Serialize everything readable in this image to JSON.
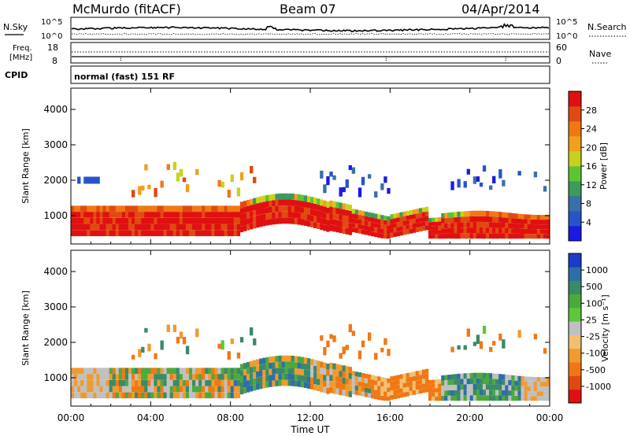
{
  "header": {
    "station": "McMurdo (fitACF)",
    "beam": "Beam 07",
    "date": "04/Apr/2014"
  },
  "summary": {
    "nsky_label": "N.Sky",
    "nsky_top": "10^5",
    "nsky_bottom": "10^0",
    "nsearch_label": "N.Search",
    "nsearch_top": "10^5",
    "nsearch_bottom": "10^0",
    "freq_label_1": "Freq.",
    "freq_label_2": "[MHz]",
    "freq_top": "18",
    "freq_bottom": "8",
    "nave_label": "Nave",
    "nave_top": "60",
    "nave_bottom": "0",
    "cpid_label": "CPID",
    "cpid_value": "normal (fast) 151 RF"
  },
  "chart_data": [
    {
      "type": "heatmap",
      "name": "power",
      "ylabel": "Slant Range [km]",
      "xlabel": "",
      "x_ticks": [
        "00:00",
        "04:00",
        "08:00",
        "12:00",
        "16:00",
        "20:00",
        "00:00"
      ],
      "y_ticks": [
        1000,
        2000,
        3000,
        4000
      ],
      "ylim": [
        200,
        4600
      ],
      "colorbar": {
        "label": "Power [dB]",
        "ticks": [
          4,
          8,
          12,
          16,
          20,
          24,
          28
        ],
        "colors": [
          "#1a1ae6",
          "#2854c8",
          "#3a6fa8",
          "#3d9a5a",
          "#5fc432",
          "#c8d21e",
          "#f0a01e",
          "#f07814",
          "#e04a10",
          "#e01010"
        ]
      }
    },
    {
      "type": "heatmap",
      "name": "velocity",
      "ylabel": "Slant Range [km]",
      "xlabel": "Time UT",
      "x_ticks": [
        "00:00",
        "04:00",
        "08:00",
        "12:00",
        "16:00",
        "20:00",
        "00:00"
      ],
      "y_ticks": [
        1000,
        2000,
        3000,
        4000
      ],
      "ylim": [
        200,
        4600
      ],
      "colorbar": {
        "label": "Velocity [m s⁻¹]",
        "ticks": [
          "1000",
          "500",
          "100",
          "25",
          "-25",
          "-100",
          "-500",
          "-1000"
        ],
        "colors": [
          "#1a3cc8",
          "#2e6ea8",
          "#3a8a68",
          "#4caa3c",
          "#5cc83a",
          "#c0c0c0",
          "#f0c070",
          "#f09a30",
          "#f07814",
          "#e04a10",
          "#e01010"
        ]
      }
    }
  ]
}
